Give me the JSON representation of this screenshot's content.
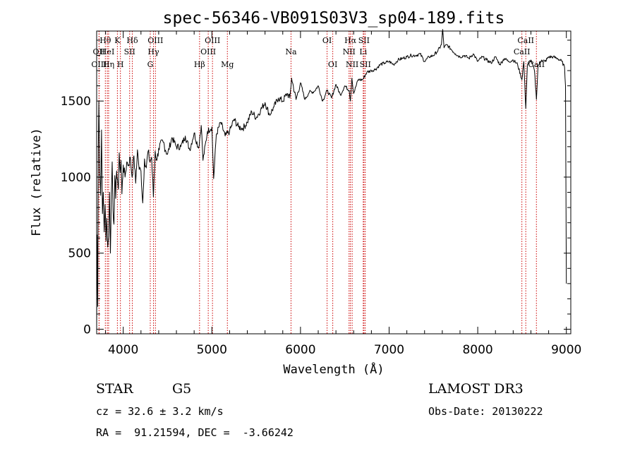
{
  "chart_data": {
    "type": "line",
    "title": "spec-56346-VB091S03V3_sp04-189.fits",
    "xlabel": "Wavelength (Å)",
    "ylabel": "Flux (relative)",
    "xlim": [
      3700,
      9050
    ],
    "ylim": [
      -30,
      1960
    ],
    "xticks": [
      4000,
      5000,
      6000,
      7000,
      8000,
      9000
    ],
    "xtick_labels": [
      "4000",
      "5000",
      "6000",
      "7000",
      "8000",
      "9000"
    ],
    "yticks": [
      0,
      500,
      1000,
      1500
    ],
    "ytick_labels": [
      "0",
      "500",
      "1000",
      "1500"
    ],
    "series": [
      {
        "name": "spectrum",
        "x": [
          3700,
          3705,
          3712,
          3718,
          3725,
          3735,
          3745,
          3755,
          3765,
          3775,
          3785,
          3795,
          3805,
          3815,
          3825,
          3835,
          3845,
          3855,
          3865,
          3875,
          3885,
          3895,
          3905,
          3915,
          3925,
          3935,
          3945,
          3955,
          3965,
          3975,
          3985,
          4000,
          4020,
          4040,
          4060,
          4080,
          4100,
          4120,
          4140,
          4160,
          4180,
          4200,
          4220,
          4240,
          4260,
          4280,
          4300,
          4320,
          4340,
          4360,
          4380,
          4400,
          4450,
          4500,
          4550,
          4600,
          4650,
          4700,
          4750,
          4800,
          4850,
          4880,
          4900,
          4950,
          5000,
          5020,
          5050,
          5100,
          5150,
          5200,
          5250,
          5300,
          5350,
          5400,
          5450,
          5500,
          5550,
          5600,
          5650,
          5700,
          5750,
          5800,
          5850,
          5880,
          5900,
          5950,
          6000,
          6050,
          6100,
          6150,
          6200,
          6250,
          6300,
          6350,
          6400,
          6450,
          6500,
          6550,
          6563,
          6580,
          6600,
          6650,
          6700,
          6750,
          6800,
          6850,
          6900,
          6950,
          7000,
          7050,
          7100,
          7150,
          7200,
          7250,
          7300,
          7350,
          7400,
          7450,
          7500,
          7550,
          7590,
          7605,
          7620,
          7650,
          7700,
          7750,
          7800,
          7850,
          7900,
          7950,
          8000,
          8050,
          8100,
          8150,
          8200,
          8250,
          8300,
          8350,
          8400,
          8450,
          8498,
          8520,
          8542,
          8560,
          8600,
          8640,
          8662,
          8680,
          8720,
          8760,
          8800,
          8850,
          8900,
          8950,
          8980,
          8990,
          9000
        ],
        "values": [
          0,
          620,
          150,
          1180,
          1500,
          1030,
          880,
          1310,
          760,
          900,
          640,
          820,
          580,
          730,
          540,
          610,
          900,
          500,
          870,
          1100,
          780,
          690,
          1010,
          860,
          1040,
          990,
          920,
          1160,
          1030,
          1110,
          890,
          1080,
          1000,
          1100,
          1080,
          1130,
          1000,
          1140,
          960,
          1180,
          1050,
          1040,
          830,
          1120,
          1060,
          1170,
          1100,
          1130,
          870,
          1170,
          1110,
          1190,
          1230,
          1150,
          1260,
          1200,
          1200,
          1270,
          1180,
          1290,
          1190,
          1340,
          1110,
          1300,
          1330,
          990,
          1280,
          1360,
          1270,
          1300,
          1380,
          1330,
          1320,
          1360,
          1430,
          1390,
          1440,
          1490,
          1410,
          1460,
          1520,
          1500,
          1550,
          1520,
          1650,
          1510,
          1620,
          1510,
          1560,
          1560,
          1600,
          1500,
          1570,
          1520,
          1610,
          1540,
          1600,
          1570,
          1500,
          1650,
          1550,
          1640,
          1640,
          1690,
          1700,
          1710,
          1740,
          1750,
          1760,
          1740,
          1770,
          1780,
          1790,
          1800,
          1800,
          1810,
          1760,
          1790,
          1800,
          1830,
          1870,
          1970,
          1850,
          1870,
          1840,
          1810,
          1790,
          1800,
          1780,
          1810,
          1760,
          1790,
          1770,
          1750,
          1790,
          1740,
          1780,
          1760,
          1770,
          1740,
          1640,
          1760,
          1450,
          1740,
          1770,
          1700,
          1510,
          1730,
          1770,
          1760,
          1790,
          1790,
          1780,
          1760,
          1720,
          1600,
          300
        ]
      }
    ],
    "line_markers": [
      {
        "label": "Hθ",
        "x": 3798,
        "row": 0
      },
      {
        "label": "OII",
        "x": 3727,
        "row": 1
      },
      {
        "label": "OIII",
        "x": 3727,
        "row": 2
      },
      {
        "label": "HeI",
        "x": 3820,
        "row": 1
      },
      {
        "label": "Hη",
        "x": 3835,
        "row": 2
      },
      {
        "label": "K",
        "x": 3934,
        "row": 0
      },
      {
        "label": "SII",
        "x": 4072,
        "row": 1
      },
      {
        "label": "H",
        "x": 3968,
        "row": 2
      },
      {
        "label": "Hδ",
        "x": 4102,
        "row": 0
      },
      {
        "label": "OIII",
        "x": 4363,
        "row": 0
      },
      {
        "label": "Hγ",
        "x": 4341,
        "row": 1
      },
      {
        "label": "G",
        "x": 4305,
        "row": 2
      },
      {
        "label": "Hβ",
        "x": 4861,
        "row": 2
      },
      {
        "label": "OIII",
        "x": 5007,
        "row": 0
      },
      {
        "label": "OIII",
        "x": 4959,
        "row": 1
      },
      {
        "label": "Mg",
        "x": 5175,
        "row": 2
      },
      {
        "label": "Na",
        "x": 5893,
        "row": 1
      },
      {
        "label": "OI",
        "x": 6300,
        "row": 0
      },
      {
        "label": "OI",
        "x": 6364,
        "row": 2
      },
      {
        "label": "Hα",
        "x": 6563,
        "row": 0
      },
      {
        "label": "NII",
        "x": 6548,
        "row": 1
      },
      {
        "label": "NII",
        "x": 6583,
        "row": 2
      },
      {
        "label": "SII",
        "x": 6716,
        "row": 0
      },
      {
        "label": "Li",
        "x": 6708,
        "row": 1
      },
      {
        "label": "SII",
        "x": 6731,
        "row": 2
      },
      {
        "label": "CaII",
        "x": 8542,
        "row": 0
      },
      {
        "label": "CaII",
        "x": 8498,
        "row": 1
      },
      {
        "label": "CaII",
        "x": 8662,
        "row": 2
      }
    ]
  },
  "info": {
    "class_label": "STAR",
    "subclass": "G5",
    "survey": "LAMOST DR3",
    "redshift": "cz = 32.6 ± 3.2 km/s",
    "obs_date": "Obs-Date: 20130222",
    "coords": "RA =  91.21594, DEC =  -3.66242"
  },
  "colors": {
    "axes": "#000000",
    "spectrum": "#000000",
    "marker": "#cc0000"
  }
}
